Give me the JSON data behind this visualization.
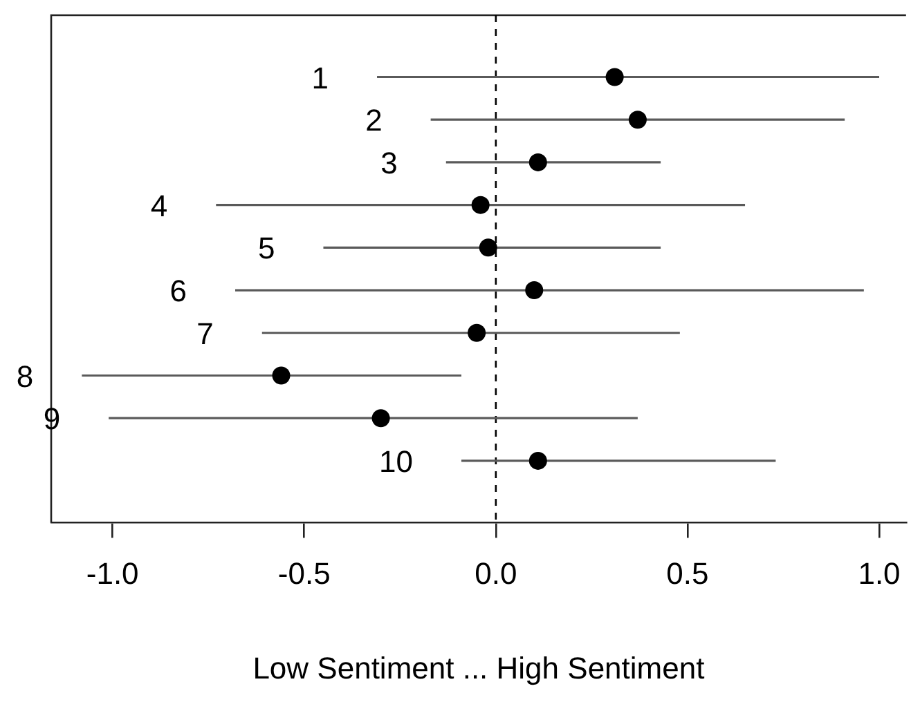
{
  "chart_data": {
    "type": "scatter",
    "orientation": "horizontal",
    "xlabel": "Low Sentiment ... High Sentiment",
    "categories": [
      "1",
      "2",
      "3",
      "4",
      "5",
      "6",
      "7",
      "8",
      "9",
      "10"
    ],
    "series": [
      {
        "color": "#000000",
        "values": [
          0.31,
          0.37,
          0.11,
          -0.04,
          -0.02,
          0.1,
          -0.05,
          -0.56,
          -0.3,
          0.11
        ],
        "errors": [
          [
            -0.31,
            1.0
          ],
          [
            -0.17,
            0.91
          ],
          [
            -0.13,
            0.43
          ],
          [
            -0.73,
            0.65
          ],
          [
            -0.45,
            0.43
          ],
          [
            -0.68,
            0.96
          ],
          [
            -0.61,
            0.48
          ],
          [
            -1.08,
            -0.09
          ],
          [
            -1.01,
            0.37
          ],
          [
            -0.09,
            0.73
          ]
        ]
      }
    ],
    "marker": "circle",
    "xlim": [
      -1.16,
      1.07
    ],
    "xticks": [
      {
        "value": -1,
        "label": "-1.0"
      },
      {
        "value": -0.5,
        "label": "-0.5"
      },
      {
        "value": 0,
        "label": "0.0"
      },
      {
        "value": 0.5,
        "label": "0.5"
      },
      {
        "value": 1,
        "label": "1.0"
      }
    ],
    "ref_lines": [
      {
        "axis": "x",
        "value": 0,
        "line_style": "dashed"
      }
    ]
  }
}
